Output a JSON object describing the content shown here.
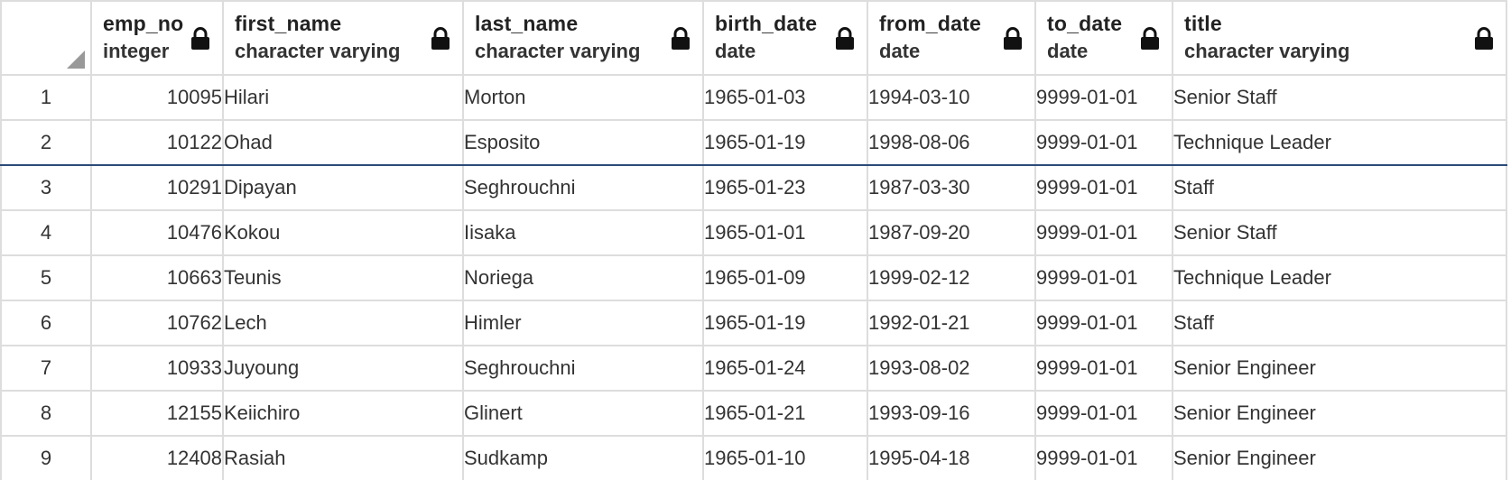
{
  "grid": {
    "columns": [
      {
        "name": "emp_no",
        "type": "integer",
        "align": "right"
      },
      {
        "name": "first_name",
        "type": "character varying",
        "align": "left"
      },
      {
        "name": "last_name",
        "type": "character varying",
        "align": "left"
      },
      {
        "name": "birth_date",
        "type": "date",
        "align": "left"
      },
      {
        "name": "from_date",
        "type": "date",
        "align": "left"
      },
      {
        "name": "to_date",
        "type": "date",
        "align": "left"
      },
      {
        "name": "title",
        "type": "character varying",
        "align": "left"
      }
    ],
    "column_icon": "lock-icon",
    "selected_row": 2,
    "rows": [
      {
        "n": "1",
        "cells": [
          "10095",
          "Hilari",
          "Morton",
          "1965-01-03",
          "1994-03-10",
          "9999-01-01",
          "Senior Staff"
        ]
      },
      {
        "n": "2",
        "cells": [
          "10122",
          "Ohad",
          "Esposito",
          "1965-01-19",
          "1998-08-06",
          "9999-01-01",
          "Technique Leader"
        ]
      },
      {
        "n": "3",
        "cells": [
          "10291",
          "Dipayan",
          "Seghrouchni",
          "1965-01-23",
          "1987-03-30",
          "9999-01-01",
          "Staff"
        ]
      },
      {
        "n": "4",
        "cells": [
          "10476",
          "Kokou",
          "Iisaka",
          "1965-01-01",
          "1987-09-20",
          "9999-01-01",
          "Senior Staff"
        ]
      },
      {
        "n": "5",
        "cells": [
          "10663",
          "Teunis",
          "Noriega",
          "1965-01-09",
          "1999-02-12",
          "9999-01-01",
          "Technique Leader"
        ]
      },
      {
        "n": "6",
        "cells": [
          "10762",
          "Lech",
          "Himler",
          "1965-01-19",
          "1992-01-21",
          "9999-01-01",
          "Staff"
        ]
      },
      {
        "n": "7",
        "cells": [
          "10933",
          "Juyoung",
          "Seghrouchni",
          "1965-01-24",
          "1993-08-02",
          "9999-01-01",
          "Senior Engineer"
        ]
      },
      {
        "n": "8",
        "cells": [
          "12155",
          "Keiichiro",
          "Glinert",
          "1965-01-21",
          "1993-09-16",
          "9999-01-01",
          "Senior Engineer"
        ]
      },
      {
        "n": "9",
        "cells": [
          "12408",
          "Rasiah",
          "Sudkamp",
          "1965-01-10",
          "1995-04-18",
          "9999-01-01",
          "Senior Engineer"
        ]
      }
    ]
  }
}
